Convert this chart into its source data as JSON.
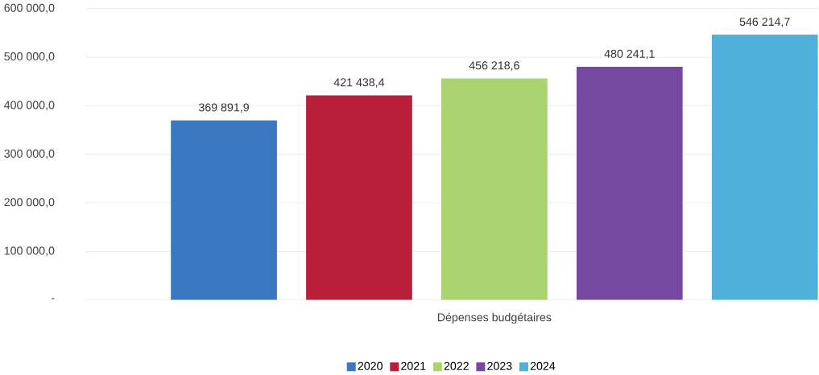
{
  "chart_data": {
    "type": "bar",
    "categories": [
      "Dépenses budgétaires"
    ],
    "series": [
      {
        "name": "2020",
        "color": "#3a78c2",
        "values": [
          369891.9
        ],
        "value_labels": [
          "369 891,9"
        ]
      },
      {
        "name": "2021",
        "color": "#b8203a",
        "values": [
          421438.4
        ],
        "value_labels": [
          "421 438,4"
        ]
      },
      {
        "name": "2022",
        "color": "#a9d46f",
        "values": [
          456218.6
        ],
        "value_labels": [
          "456 218,6"
        ]
      },
      {
        "name": "2023",
        "color": "#7549a0",
        "values": [
          480241.1
        ],
        "value_labels": [
          "480 241,1"
        ]
      },
      {
        "name": "2024",
        "color": "#4fb0dc",
        "values": [
          546214.7
        ],
        "value_labels": [
          "546 214,7"
        ]
      }
    ],
    "ylim": [
      0,
      600000
    ],
    "yticks": [
      {
        "value": 0,
        "label": "-"
      },
      {
        "value": 100000,
        "label": "100 000,0"
      },
      {
        "value": 200000,
        "label": "200 000,0"
      },
      {
        "value": 300000,
        "label": "300 000,0"
      },
      {
        "value": 400000,
        "label": "400 000,0"
      },
      {
        "value": 500000,
        "label": "500 000,0"
      },
      {
        "value": 600000,
        "label": "600 000,0"
      }
    ],
    "grid": "y",
    "legend": "bottom"
  }
}
